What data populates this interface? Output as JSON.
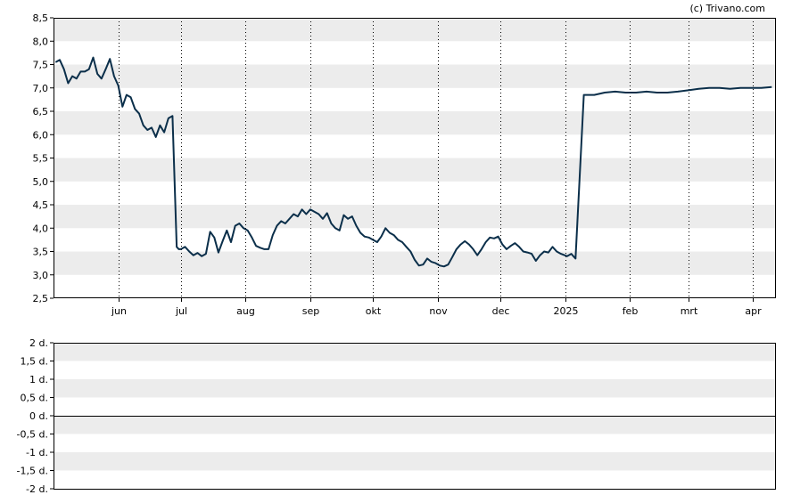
{
  "copyright": "(c) Trivano.com",
  "chart_data": [
    {
      "type": "line",
      "title": "",
      "xlabel": "",
      "ylabel": "",
      "ylim": [
        2.5,
        8.5
      ],
      "y_ticks": [
        "2,5",
        "3,0",
        "3,5",
        "4,0",
        "4,5",
        "5,0",
        "5,5",
        "6,0",
        "6,5",
        "7,0",
        "7,5",
        "8,0",
        "8,5"
      ],
      "x_tick_labels": [
        {
          "label": "jun",
          "date": "2024-06-01"
        },
        {
          "label": "jul",
          "date": "2024-07-01"
        },
        {
          "label": "aug",
          "date": "2024-08-01"
        },
        {
          "label": "sep",
          "date": "2024-09-01"
        },
        {
          "label": "okt",
          "date": "2024-10-01"
        },
        {
          "label": "nov",
          "date": "2024-11-01"
        },
        {
          "label": "dec",
          "date": "2024-12-01"
        },
        {
          "label": "2025",
          "date": "2025-01-01"
        },
        {
          "label": "feb",
          "date": "2025-02-01"
        },
        {
          "label": "mrt",
          "date": "2025-03-01"
        },
        {
          "label": "apr",
          "date": "2025-04-01"
        }
      ],
      "grid": true,
      "line_color": "#0b2f4a",
      "band_color": "#ececec",
      "series": [
        {
          "x": [
            "2024-05-02",
            "2024-05-04",
            "2024-05-06",
            "2024-05-08",
            "2024-05-10",
            "2024-05-12",
            "2024-05-14",
            "2024-05-16",
            "2024-05-18",
            "2024-05-20",
            "2024-05-22",
            "2024-05-24",
            "2024-05-26",
            "2024-05-28",
            "2024-05-30",
            "2024-06-01",
            "2024-06-03",
            "2024-06-05",
            "2024-06-07",
            "2024-06-09",
            "2024-06-11",
            "2024-06-13",
            "2024-06-15",
            "2024-06-17",
            "2024-06-19",
            "2024-06-21",
            "2024-06-23",
            "2024-06-25",
            "2024-06-27",
            "2024-06-29",
            "2024-06-30",
            "2024-07-01",
            "2024-07-03",
            "2024-07-05",
            "2024-07-07",
            "2024-07-09",
            "2024-07-11",
            "2024-07-13",
            "2024-07-15",
            "2024-07-17",
            "2024-07-19",
            "2024-07-21",
            "2024-07-23",
            "2024-07-25",
            "2024-07-27",
            "2024-07-29",
            "2024-07-31",
            "2024-08-02",
            "2024-08-04",
            "2024-08-06",
            "2024-08-08",
            "2024-08-10",
            "2024-08-12",
            "2024-08-14",
            "2024-08-16",
            "2024-08-18",
            "2024-08-20",
            "2024-08-22",
            "2024-08-24",
            "2024-08-26",
            "2024-08-28",
            "2024-08-30",
            "2024-09-01",
            "2024-09-03",
            "2024-09-05",
            "2024-09-07",
            "2024-09-09",
            "2024-09-11",
            "2024-09-13",
            "2024-09-15",
            "2024-09-17",
            "2024-09-19",
            "2024-09-21",
            "2024-09-23",
            "2024-09-25",
            "2024-09-27",
            "2024-09-29",
            "2024-10-01",
            "2024-10-03",
            "2024-10-05",
            "2024-10-07",
            "2024-10-09",
            "2024-10-11",
            "2024-10-13",
            "2024-10-15",
            "2024-10-17",
            "2024-10-19",
            "2024-10-21",
            "2024-10-23",
            "2024-10-25",
            "2024-10-27",
            "2024-10-29",
            "2024-10-31",
            "2024-11-02",
            "2024-11-04",
            "2024-11-06",
            "2024-11-08",
            "2024-11-10",
            "2024-11-12",
            "2024-11-14",
            "2024-11-16",
            "2024-11-18",
            "2024-11-20",
            "2024-11-22",
            "2024-11-24",
            "2024-11-26",
            "2024-11-28",
            "2024-11-30",
            "2024-12-02",
            "2024-12-04",
            "2024-12-06",
            "2024-12-08",
            "2024-12-10",
            "2024-12-12",
            "2024-12-14",
            "2024-12-16",
            "2024-12-18",
            "2024-12-20",
            "2024-12-22",
            "2024-12-24",
            "2024-12-26",
            "2024-12-28",
            "2024-12-30",
            "2025-01-02",
            "2025-01-04",
            "2025-01-05",
            "2025-01-06",
            "2025-01-10",
            "2025-01-15",
            "2025-01-20",
            "2025-01-25",
            "2025-01-30",
            "2025-02-04",
            "2025-02-09",
            "2025-02-14",
            "2025-02-19",
            "2025-02-24",
            "2025-03-01",
            "2025-03-06",
            "2025-03-11",
            "2025-03-16",
            "2025-03-21",
            "2025-03-26",
            "2025-03-31",
            "2025-04-05",
            "2025-04-10"
          ],
          "y": [
            7.55,
            7.6,
            7.4,
            7.1,
            7.25,
            7.2,
            7.35,
            7.35,
            7.4,
            7.65,
            7.3,
            7.2,
            7.4,
            7.62,
            7.25,
            7.05,
            6.6,
            6.85,
            6.8,
            6.55,
            6.45,
            6.2,
            6.1,
            6.15,
            5.95,
            6.2,
            6.05,
            6.35,
            6.4,
            3.6,
            3.55,
            3.55,
            3.6,
            3.5,
            3.42,
            3.47,
            3.4,
            3.45,
            3.92,
            3.8,
            3.48,
            3.72,
            3.95,
            3.7,
            4.05,
            4.1,
            4.0,
            3.95,
            3.8,
            3.62,
            3.58,
            3.55,
            3.55,
            3.85,
            4.05,
            4.15,
            4.1,
            4.2,
            4.3,
            4.25,
            4.4,
            4.3,
            4.4,
            4.35,
            4.3,
            4.2,
            4.32,
            4.1,
            4.0,
            3.95,
            4.28,
            4.2,
            4.25,
            4.05,
            3.9,
            3.82,
            3.8,
            3.75,
            3.7,
            3.82,
            4.0,
            3.9,
            3.85,
            3.75,
            3.7,
            3.6,
            3.5,
            3.32,
            3.2,
            3.22,
            3.35,
            3.28,
            3.25,
            3.2,
            3.18,
            3.22,
            3.38,
            3.55,
            3.65,
            3.72,
            3.65,
            3.55,
            3.42,
            3.55,
            3.7,
            3.8,
            3.78,
            3.82,
            3.65,
            3.55,
            3.62,
            3.68,
            3.6,
            3.5,
            3.48,
            3.45,
            3.3,
            3.42,
            3.5,
            3.48,
            3.6,
            3.5,
            3.45,
            3.4,
            3.45,
            3.4,
            3.35,
            6.85,
            6.85,
            6.9,
            6.92,
            6.9,
            6.9,
            6.92,
            6.9,
            6.9,
            6.92,
            6.95,
            6.98,
            7.0,
            7.0,
            6.98,
            7.0,
            7.0,
            7.0,
            7.02
          ]
        }
      ]
    },
    {
      "type": "line",
      "title": "",
      "xlabel": "",
      "ylabel": "",
      "ylim": [
        -2,
        2
      ],
      "y_ticks": [
        "2 d.",
        "1,5 d.",
        "1 d.",
        "0,5 d.",
        "0 d.",
        "-0,5 d.",
        "-1 d.",
        "-1,5 d.",
        "-2 d."
      ],
      "grid": true,
      "series": []
    }
  ]
}
